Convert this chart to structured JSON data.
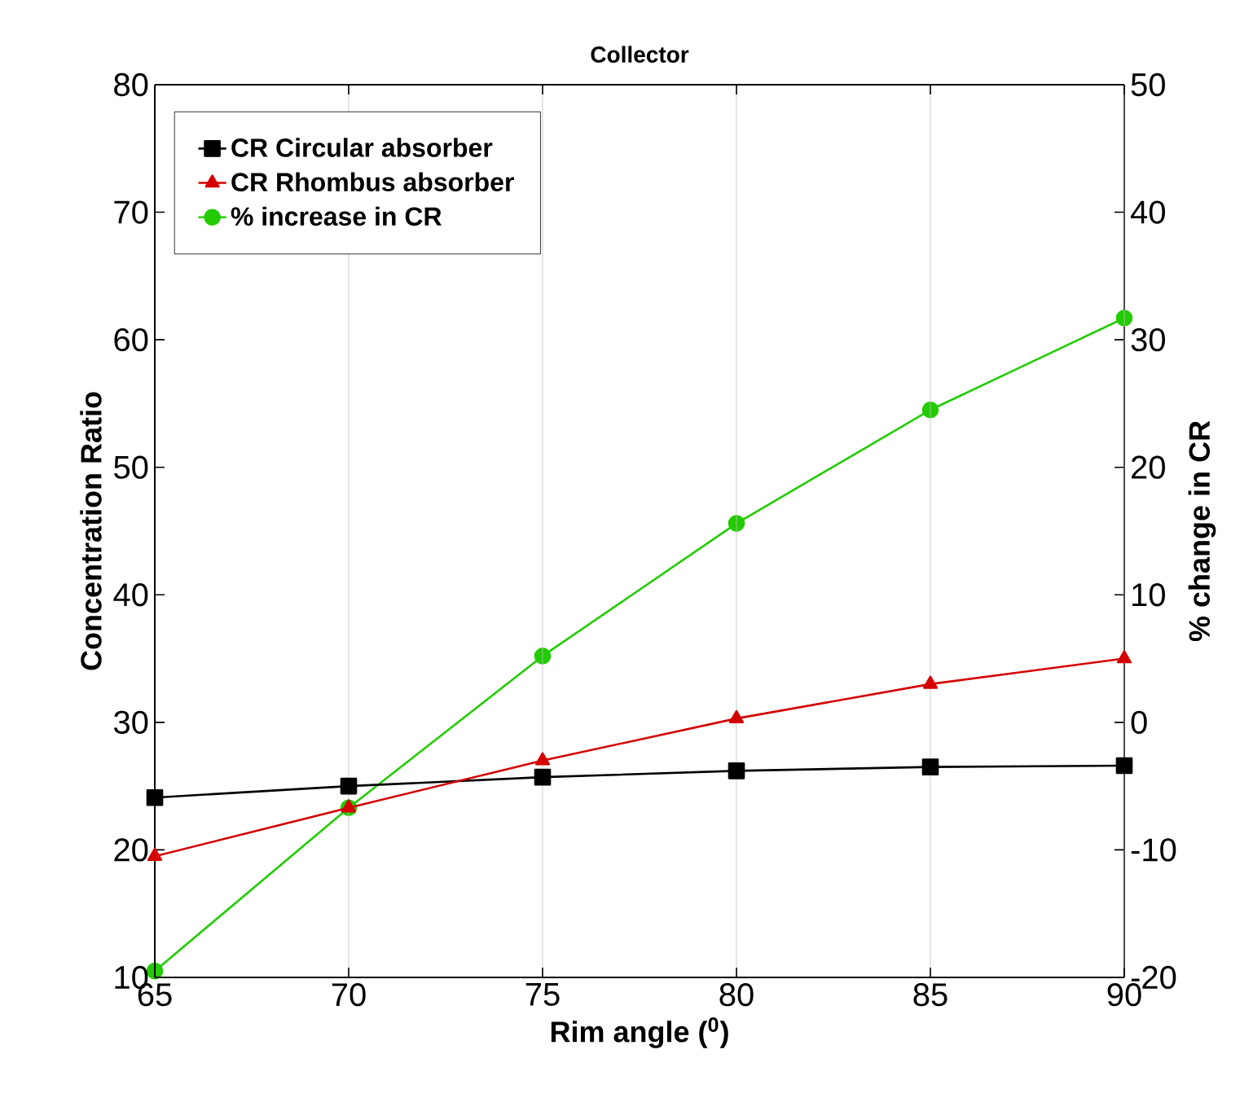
{
  "chart_data": {
    "type": "line",
    "title": "Collector",
    "xlabel": "Rim angle ($^{0}$)",
    "ylabel": "Concentration Ratio",
    "y2label": "% change in CR",
    "x": [
      65,
      70,
      75,
      80,
      85,
      90
    ],
    "series": [
      {
        "name": "CR Circular absorber",
        "color": "#000000",
        "marker": "square",
        "values": [
          24.1,
          25.0,
          25.7,
          26.2,
          26.5,
          26.6
        ]
      },
      {
        "name": "CR Rhombus absorber",
        "color": "#d40000",
        "marker": "triangle",
        "values": [
          19.5,
          23.3,
          27.0,
          30.3,
          33.0,
          35.0
        ]
      },
      {
        "name": "% increase in CR",
        "color": "#22cc00",
        "marker": "circle",
        "axis": "y2",
        "values": [
          -19.5,
          -6.7,
          5.2,
          15.6,
          24.5,
          31.7
        ]
      }
    ],
    "xlim": [
      65,
      90
    ],
    "xticks": [
      65,
      70,
      75,
      80,
      85,
      90
    ],
    "ylim": [
      10,
      80
    ],
    "yticks": [
      10,
      20,
      30,
      40,
      50,
      60,
      70,
      80
    ],
    "y2lim": [
      -20,
      50
    ],
    "y2ticks": [
      -20,
      -10,
      0,
      10,
      20,
      30,
      40,
      50
    ],
    "grid": "x",
    "legend": "top left",
    "line_style": "solid"
  }
}
